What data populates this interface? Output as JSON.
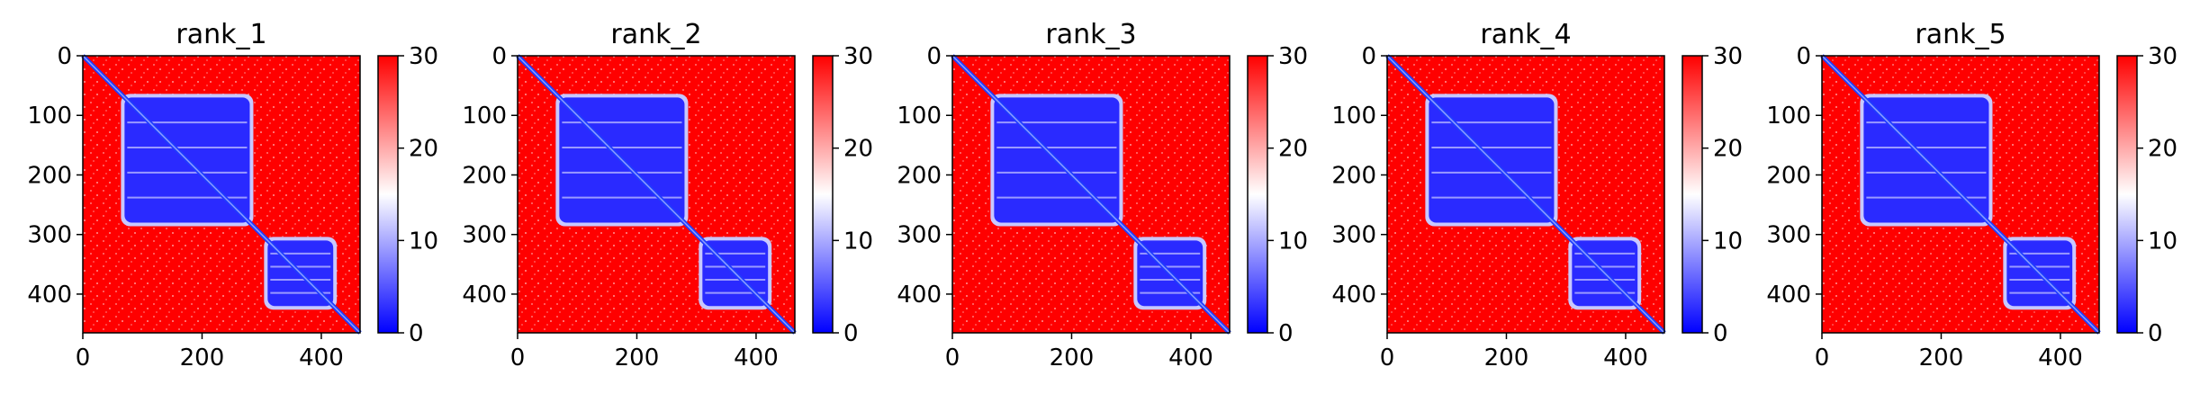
{
  "figure": {
    "panels": [
      {
        "title": "rank_1"
      },
      {
        "title": "rank_2"
      },
      {
        "title": "rank_3"
      },
      {
        "title": "rank_4"
      },
      {
        "title": "rank_5"
      }
    ]
  },
  "chart_data": {
    "type": "heatmap",
    "title": "",
    "xlabel": "",
    "ylabel": "",
    "x_range": [
      0,
      465
    ],
    "y_range": [
      465,
      0
    ],
    "x_ticks": [
      0,
      200,
      400
    ],
    "x_tick_labels": [
      "0",
      "200",
      "400"
    ],
    "y_ticks": [
      0,
      100,
      200,
      300,
      400
    ],
    "y_tick_labels": [
      "0",
      "100",
      "200",
      "300",
      "400"
    ],
    "colorbar": {
      "range": [
        0,
        30
      ],
      "ticks": [
        0,
        10,
        20,
        30
      ],
      "tick_labels": [
        "0",
        "10",
        "20",
        "30"
      ],
      "colormap": "bwr",
      "colors": {
        "low": "#0000ff",
        "mid": "#ffffff",
        "high": "#ff0000"
      }
    },
    "panels": [
      {
        "title": "rank_1",
        "blocks": [
          [
            70,
            280
          ],
          [
            310,
            420
          ]
        ]
      },
      {
        "title": "rank_2",
        "blocks": [
          [
            70,
            280
          ],
          [
            310,
            420
          ]
        ]
      },
      {
        "title": "rank_3",
        "blocks": [
          [
            70,
            280
          ],
          [
            310,
            420
          ]
        ]
      },
      {
        "title": "rank_4",
        "blocks": [
          [
            70,
            280
          ],
          [
            310,
            420
          ]
        ]
      },
      {
        "title": "rank_5",
        "blocks": [
          [
            70,
            280
          ],
          [
            310,
            420
          ]
        ]
      }
    ]
  }
}
